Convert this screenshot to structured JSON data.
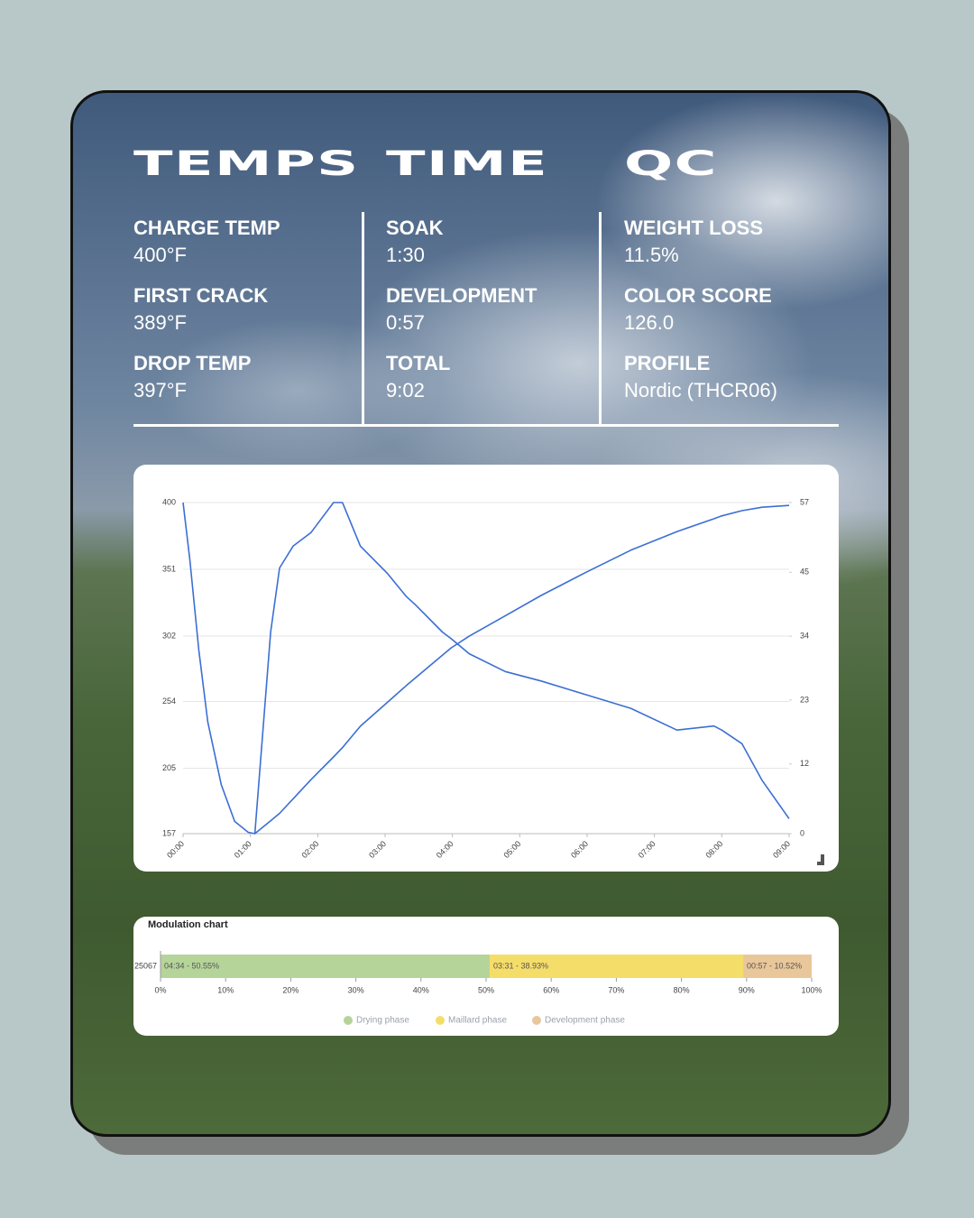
{
  "columns": [
    {
      "title": "TEMPS",
      "items": [
        {
          "label": "CHARGE TEMP",
          "value": "400°F"
        },
        {
          "label": "FIRST CRACK",
          "value": "389°F"
        },
        {
          "label": "DROP TEMP",
          "value": "397°F"
        }
      ]
    },
    {
      "title": "TIME",
      "items": [
        {
          "label": "SOAK",
          "value": "1:30"
        },
        {
          "label": "DEVELOPMENT",
          "value": "0:57"
        },
        {
          "label": "TOTAL",
          "value": "9:02"
        }
      ]
    },
    {
      "title": "QC",
      "items": [
        {
          "label": "WEIGHT LOSS",
          "value": "11.5%"
        },
        {
          "label": "COLOR SCORE",
          "value": "126.0"
        },
        {
          "label": "PROFILE",
          "value": "Nordic (THCR06)"
        }
      ]
    }
  ],
  "chart_data": [
    {
      "type": "line",
      "x": [
        0,
        6,
        14,
        22,
        34,
        46,
        58,
        64,
        78,
        86,
        98,
        114,
        134,
        142,
        158,
        182,
        199,
        207,
        231,
        239,
        255,
        287,
        319,
        359,
        399,
        440,
        473,
        480,
        498,
        516,
        540
      ],
      "series": [
        {
          "color": "#3b6fd4",
          "values": [
            400,
            358,
            292,
            239,
            193,
            166,
            158,
            157,
            305,
            352,
            368,
            378,
            400,
            400,
            368,
            348,
            331,
            325,
            305,
            300,
            289,
            276,
            269,
            259,
            249,
            233,
            236,
            233,
            223,
            196,
            168
          ]
        },
        {
          "color": "#3b6fd4",
          "axis": "y2",
          "values": [
            null,
            null,
            null,
            null,
            null,
            null,
            null,
            0,
            2.2,
            3.5,
            6,
            9.3,
            13.2,
            14.8,
            18.5,
            22.6,
            25.5,
            26.8,
            30.7,
            32,
            34,
            37.5,
            41,
            45,
            48.8,
            52,
            54.2,
            54.7,
            55.6,
            56.2,
            56.5
          ]
        }
      ],
      "xlim": [
        0,
        540
      ],
      "xticks": [
        {
          "value": 0,
          "label": "00:00"
        },
        {
          "value": 60,
          "label": "01:00"
        },
        {
          "value": 120,
          "label": "02:00"
        },
        {
          "value": 180,
          "label": "03:00"
        },
        {
          "value": 240,
          "label": "04:00"
        },
        {
          "value": 300,
          "label": "05:00"
        },
        {
          "value": 360,
          "label": "06:00"
        },
        {
          "value": 420,
          "label": "07:00"
        },
        {
          "value": 480,
          "label": "08:00"
        },
        {
          "value": 540,
          "label": "09:00"
        }
      ],
      "ylim": [
        157,
        400
      ],
      "yticks": [
        157,
        205,
        254,
        302,
        351,
        400
      ],
      "y2lim": [
        0,
        57
      ],
      "y2ticks": [
        0,
        12,
        23,
        34,
        45,
        57
      ],
      "grid": true
    },
    {
      "type": "stacked-bar-horizontal",
      "title": "Modulation chart",
      "categories": [
        "25067"
      ],
      "series": [
        {
          "name": "Drying phase",
          "color": "#b5d49a",
          "values": [
            50.55
          ],
          "value_labels": [
            "04:34 - 50.55%"
          ]
        },
        {
          "name": "Maillard phase",
          "color": "#f5dd6a",
          "values": [
            38.93
          ],
          "value_labels": [
            "03:31 - 38.93%"
          ]
        },
        {
          "name": "Development phase",
          "color": "#e9c79a",
          "values": [
            10.52
          ],
          "value_labels": [
            "00:57 - 10.52%"
          ]
        }
      ],
      "xlim": [
        0,
        100
      ],
      "xticks": [
        {
          "value": 0,
          "label": "0%"
        },
        {
          "value": 10,
          "label": "10%"
        },
        {
          "value": 20,
          "label": "20%"
        },
        {
          "value": 30,
          "label": "30%"
        },
        {
          "value": 40,
          "label": "40%"
        },
        {
          "value": 50,
          "label": "50%"
        },
        {
          "value": 60,
          "label": "60%"
        },
        {
          "value": 70,
          "label": "70%"
        },
        {
          "value": 80,
          "label": "80%"
        },
        {
          "value": 90,
          "label": "90%"
        },
        {
          "value": 100,
          "label": "100%"
        }
      ],
      "legend": "bottom"
    }
  ]
}
